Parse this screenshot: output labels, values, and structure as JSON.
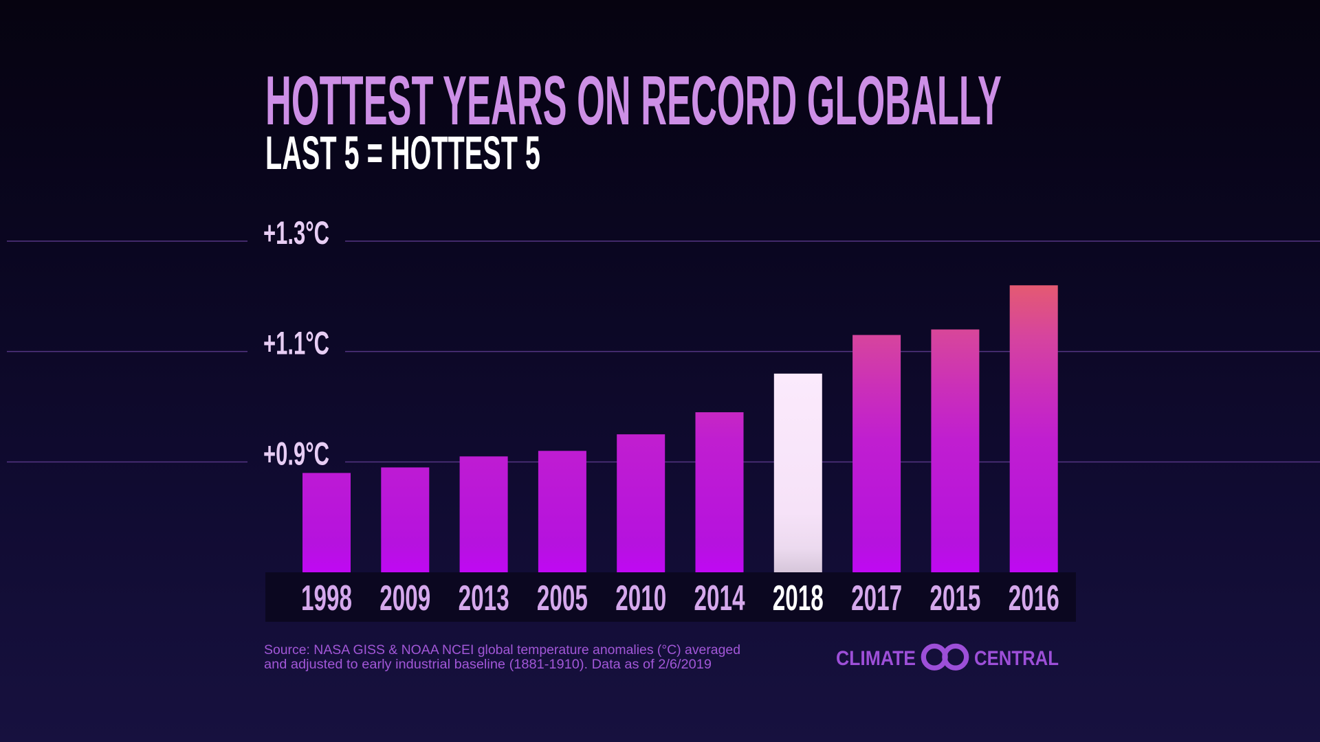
{
  "chart_data": {
    "type": "bar",
    "title": "HOTTEST YEARS ON RECORD GLOBALLY",
    "subtitle": "LAST 5 = HOTTEST 5",
    "categories": [
      "1998",
      "2009",
      "2013",
      "2005",
      "2010",
      "2014",
      "2018",
      "2017",
      "2015",
      "2016"
    ],
    "values": [
      0.88,
      0.89,
      0.91,
      0.92,
      0.95,
      0.99,
      1.06,
      1.13,
      1.14,
      1.22
    ],
    "highlight_index": 6,
    "ylim": [
      0.7,
      1.3
    ],
    "yticks": [
      1.3,
      1.1,
      0.9
    ],
    "ytick_labels": [
      "+1.3°C",
      "+1.1°C",
      "+0.9°C"
    ],
    "grid": true
  },
  "source": {
    "line1": "Source: NASA GISS & NOAA NCEI global temperature anomalies (°C) averaged",
    "line2": "and adjusted to early industrial baseline (1881-1910). Data as of 2/6/2019"
  },
  "logo": {
    "word1": "CLIMATE",
    "word2": "CENTRAL",
    "icon": "interlocking-rings-icon"
  },
  "colors": {
    "title": "#cd8fe6",
    "subtitle": "#ffffff",
    "tick_label": "#e7cdf4",
    "year_label": "#d5a8ec",
    "highlight_label": "#ffffff",
    "gridline": "#553584",
    "label_band": "#0b0720",
    "bar_gradient": [
      "#e45a72",
      "#d6449e",
      "#cb30b8",
      "#c01ed0",
      "#b612de",
      "#c008f4"
    ],
    "highlight_bar_gradient": [
      "#fbeafc",
      "#f6e2f8",
      "#ecdaef",
      "#d6c6da"
    ],
    "source": "#a257d8",
    "logo": "#9d4fd8"
  }
}
